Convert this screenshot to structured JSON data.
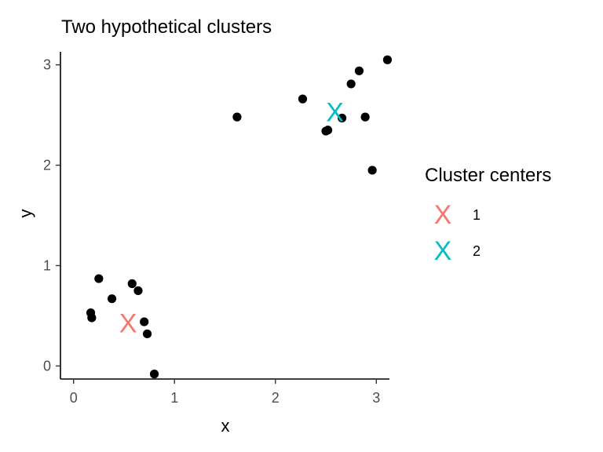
{
  "chart_data": {
    "type": "scatter",
    "title": "Two hypothetical clusters",
    "xlabel": "x",
    "ylabel": "y",
    "xlim": [
      -0.13,
      3.13
    ],
    "ylim": [
      -0.13,
      3.13
    ],
    "x_ticks": [
      0,
      1,
      2,
      3
    ],
    "y_ticks": [
      0,
      1,
      2,
      3
    ],
    "grid": false,
    "points": [
      {
        "x": 0.17,
        "y": 0.53
      },
      {
        "x": 0.18,
        "y": 0.48
      },
      {
        "x": 0.25,
        "y": 0.87
      },
      {
        "x": 0.38,
        "y": 0.67
      },
      {
        "x": 0.58,
        "y": 0.82
      },
      {
        "x": 0.64,
        "y": 0.75
      },
      {
        "x": 0.7,
        "y": 0.44
      },
      {
        "x": 0.73,
        "y": 0.32
      },
      {
        "x": 0.8,
        "y": -0.08
      },
      {
        "x": 1.62,
        "y": 2.48
      },
      {
        "x": 2.27,
        "y": 2.66
      },
      {
        "x": 2.5,
        "y": 2.34
      },
      {
        "x": 2.52,
        "y": 2.35
      },
      {
        "x": 2.66,
        "y": 2.47
      },
      {
        "x": 2.75,
        "y": 2.81
      },
      {
        "x": 2.83,
        "y": 2.94
      },
      {
        "x": 2.89,
        "y": 2.48
      },
      {
        "x": 2.96,
        "y": 1.95
      },
      {
        "x": 3.11,
        "y": 3.05
      }
    ],
    "centers": [
      {
        "name": "1",
        "x": 0.54,
        "y": 0.43,
        "color": "#F8766D"
      },
      {
        "name": "2",
        "x": 2.59,
        "y": 2.53,
        "color": "#00BFC4"
      }
    ],
    "legend": {
      "title": "Cluster centers",
      "placement": "right",
      "items": [
        {
          "label": "1",
          "symbol": "X",
          "color": "#F8766D"
        },
        {
          "label": "2",
          "symbol": "X",
          "color": "#00BFC4"
        }
      ]
    }
  }
}
